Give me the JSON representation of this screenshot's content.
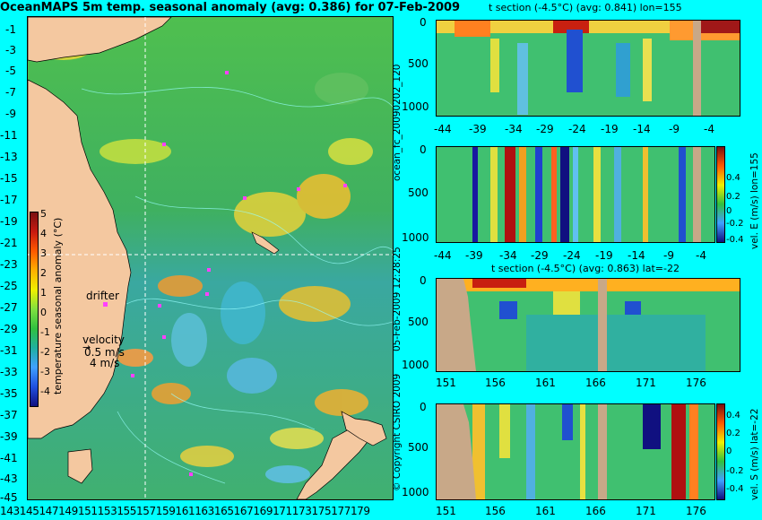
{
  "title": "OceanMAPS 5m temp. seasonal anomaly (avg: 0.386) for 07-Feb-2009",
  "map": {
    "lat_labels": [
      "-1",
      "-3",
      "-5",
      "-7",
      "-9",
      "-11",
      "-13",
      "-15",
      "-17",
      "-19",
      "-21",
      "-23",
      "-25",
      "-27",
      "-29",
      "-31",
      "-33",
      "-35",
      "-37",
      "-39",
      "-41",
      "-43",
      "-45"
    ],
    "lon_labels": [
      "143",
      "145",
      "147",
      "149",
      "151",
      "153",
      "155",
      "157",
      "159",
      "161",
      "163",
      "165",
      "167",
      "169",
      "171",
      "173",
      "175",
      "177",
      "179"
    ],
    "colorbar_label": "temperature seasonal anomaly (°C)",
    "colorbar_ticks": [
      "5",
      "4",
      "3",
      "2",
      "1",
      "0",
      "-1",
      "-2",
      "-3",
      "-4"
    ],
    "drifter_label": "drifter",
    "velocity_label": "velocity",
    "velocity_value1": "0.5 m/s",
    "velocity_value2": "4 m/s"
  },
  "panels": [
    {
      "title": "t section (-4.5°C) (avg: 0.841) lon=155",
      "y_ticks": [
        "0",
        "500",
        "1000"
      ],
      "x_ticks": [
        "-44",
        "-39",
        "-34",
        "-29",
        "-24",
        "-19",
        "-14",
        "-9",
        "-4"
      ],
      "side_label": ""
    },
    {
      "title": "",
      "y_ticks": [
        "0",
        "500",
        "1000"
      ],
      "x_ticks": [
        "-44",
        "-39",
        "-34",
        "-29",
        "-24",
        "-19",
        "-14",
        "-9",
        "-4"
      ],
      "side_label": "vel. E (m/s) lon=155",
      "cb_ticks": [
        "0.4",
        "0.2",
        "0",
        "-0.2",
        "-0.4"
      ]
    },
    {
      "title": "t section (-4.5°C) (avg: 0.863) lat=-22",
      "y_ticks": [
        "0",
        "500",
        "1000"
      ],
      "x_ticks": [
        "151",
        "156",
        "161",
        "166",
        "171",
        "176"
      ],
      "side_label": ""
    },
    {
      "title": "",
      "y_ticks": [
        "0",
        "500",
        "1000"
      ],
      "x_ticks": [
        "151",
        "156",
        "161",
        "166",
        "171",
        "176"
      ],
      "side_label": "vel. S (m/s) lat=-22",
      "cb_ticks": [
        "0.4",
        "0.2",
        "0",
        "-0.2",
        "-0.4"
      ]
    }
  ],
  "vertical_labels": {
    "forecast_id": "ocean_fc_20090202_120",
    "timestamp": "05-Feb-2009 12:28:25",
    "copyright": "© Copyright CSIRO 2009"
  },
  "colors": {
    "background": "#00ffff",
    "land": "#f4c8a0",
    "section_land": "#c8a888"
  }
}
